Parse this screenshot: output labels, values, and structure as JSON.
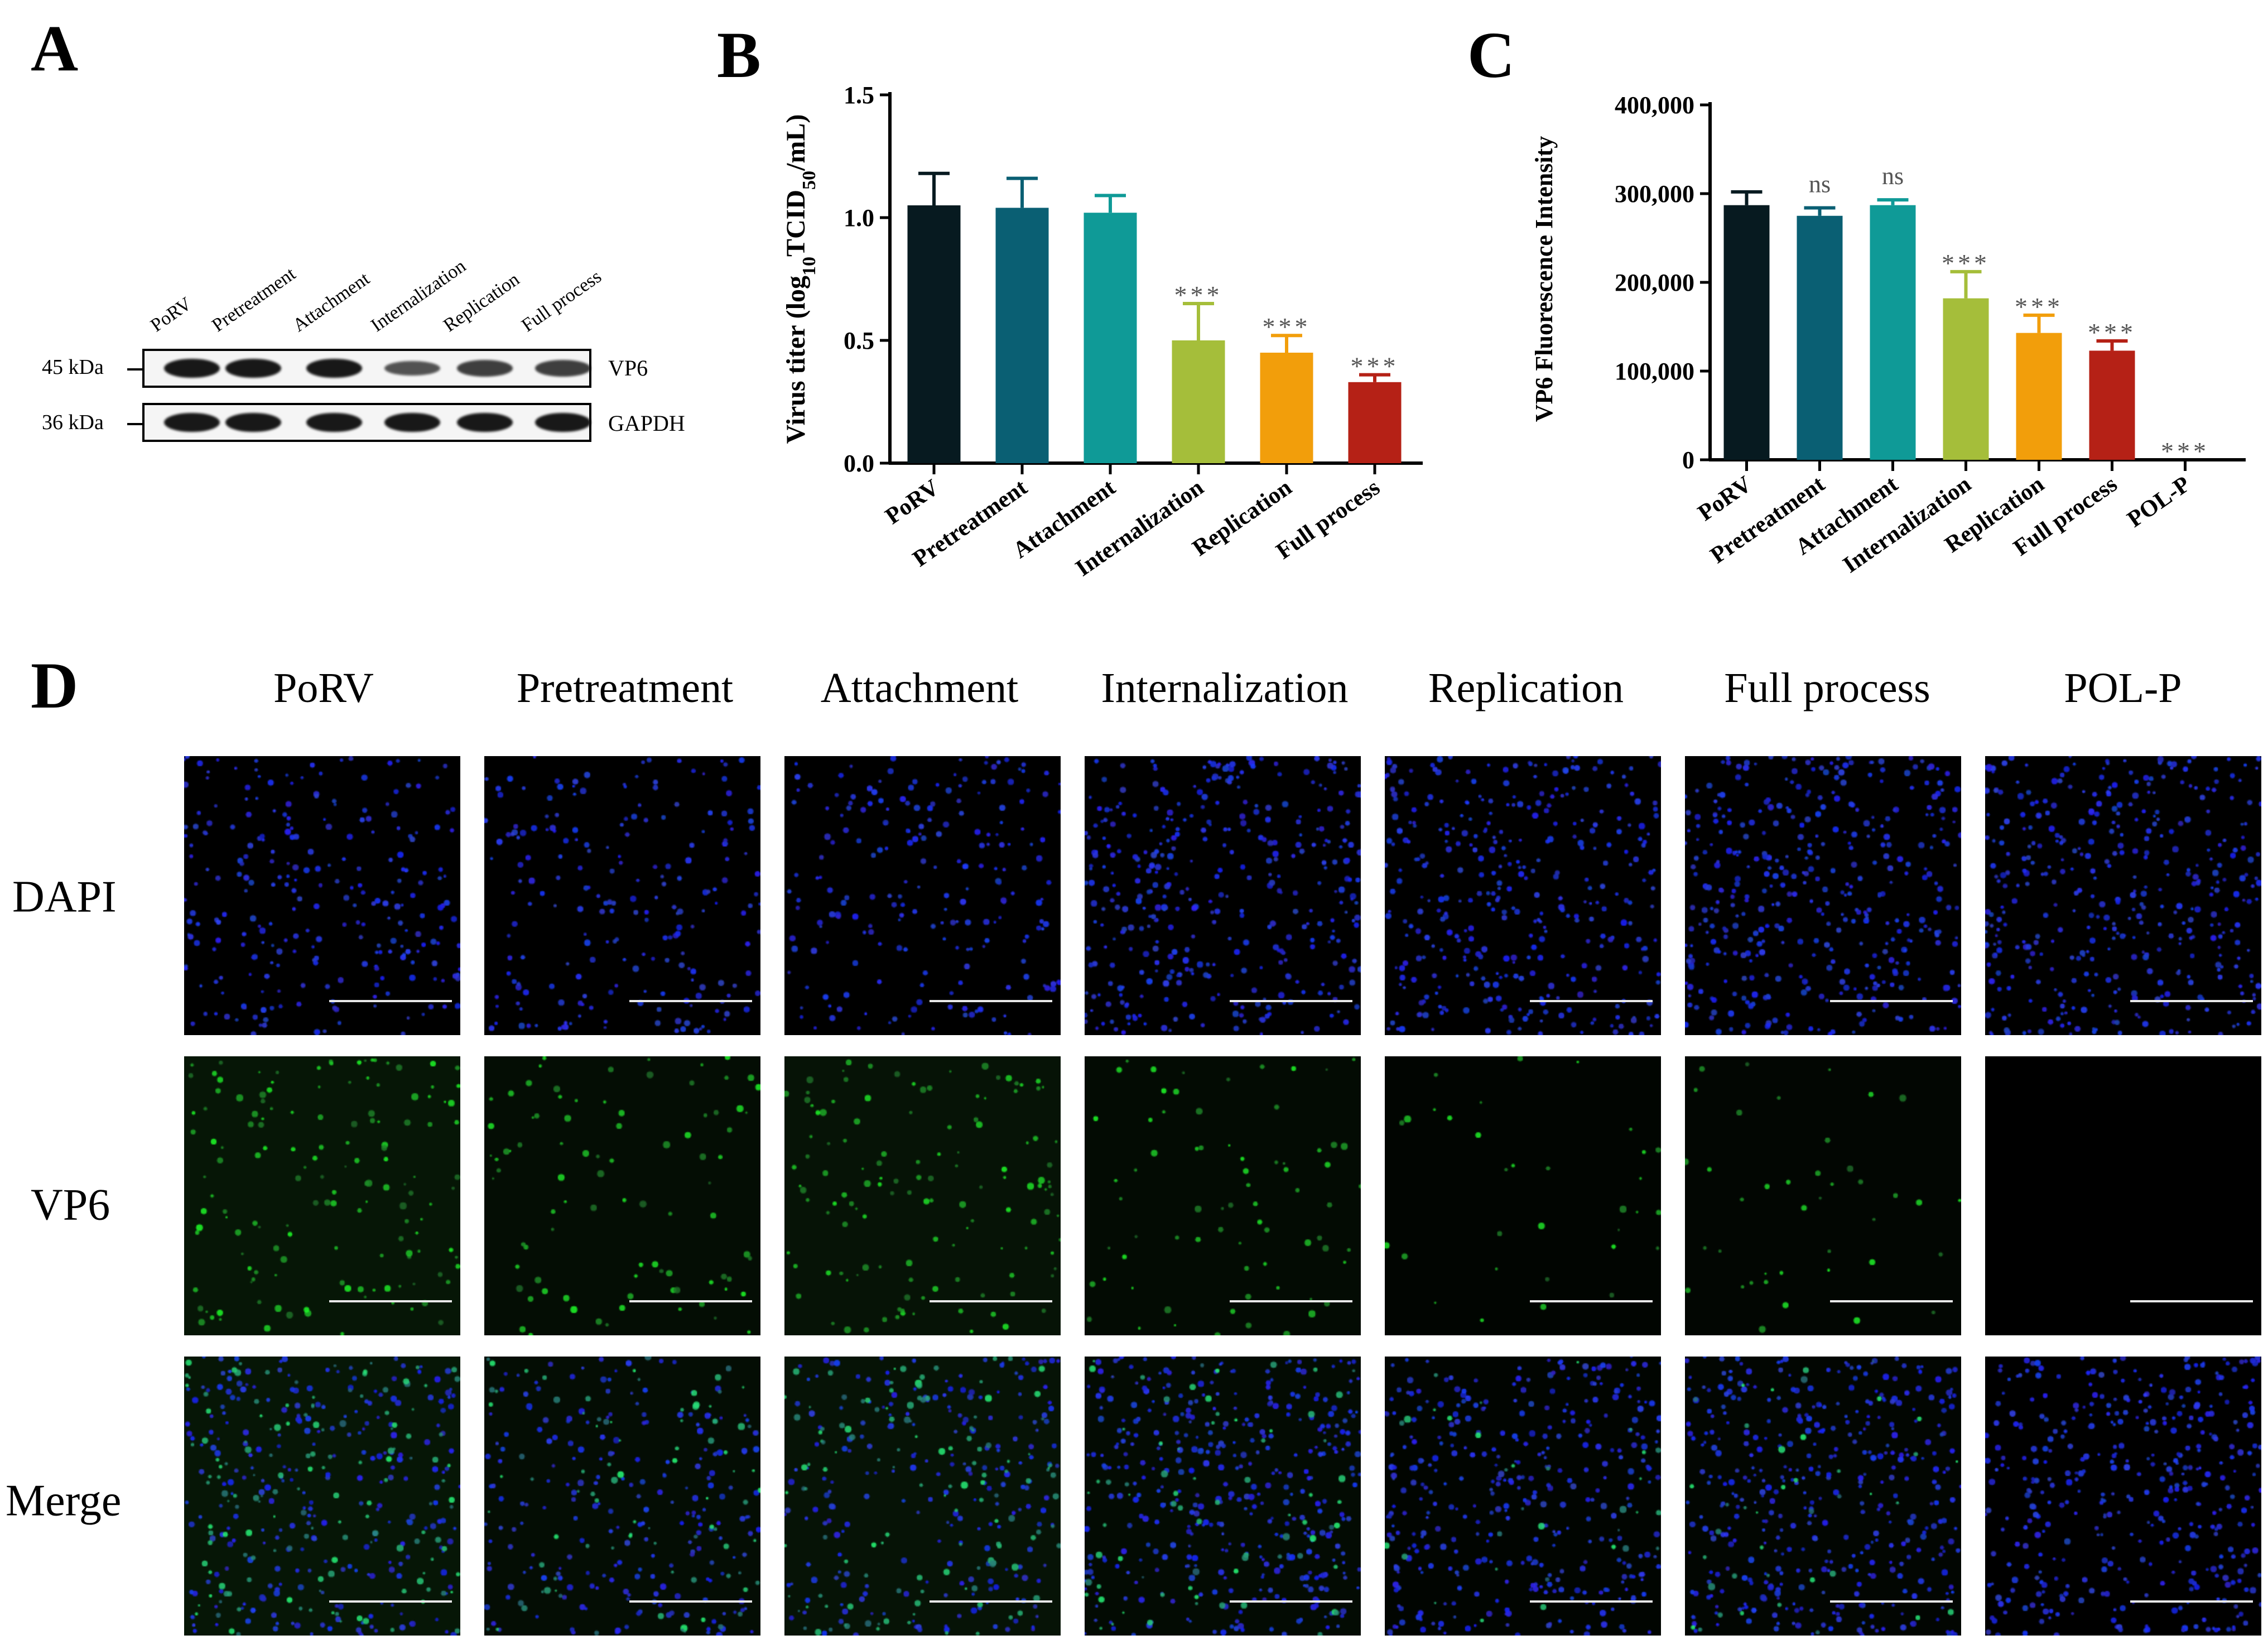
{
  "panels": {
    "a": "A",
    "b": "B",
    "c": "C",
    "d": "D"
  },
  "western_blot": {
    "lanes": [
      "PoRV",
      "Pretreatment",
      "Attachment",
      "Internalization",
      "Replication",
      "Full process"
    ],
    "rows": [
      {
        "kda": "45 kDa",
        "protein": "VP6",
        "band_strength": [
          0.95,
          0.95,
          0.95,
          0.55,
          0.7,
          0.7
        ]
      },
      {
        "kda": "36 kDa",
        "protein": "GAPDH",
        "band_strength": [
          0.95,
          0.95,
          0.95,
          0.95,
          0.95,
          0.95
        ]
      }
    ]
  },
  "chart_data": [
    {
      "type": "bar",
      "title": "",
      "ylabel_main": "Virus titer (log",
      "ylabel_sub": "10",
      "ylabel_mid": "TCID",
      "ylabel_sub2": "50",
      "ylabel_end": "/mL)",
      "categories": [
        "PoRV",
        "Pretreatment",
        "Attachment",
        "Internalization",
        "Replication",
        "Full process"
      ],
      "values": [
        1.05,
        1.04,
        1.02,
        0.5,
        0.45,
        0.33
      ],
      "errors": [
        0.13,
        0.12,
        0.07,
        0.15,
        0.07,
        0.03
      ],
      "colors": [
        "#071a20",
        "#0a5f73",
        "#0f9a97",
        "#a5be3a",
        "#f29e0b",
        "#b52116"
      ],
      "significance": [
        "",
        "",
        "",
        "***",
        "***",
        "***"
      ],
      "ylim": [
        0,
        1.5
      ],
      "yticks": [
        "0.0",
        "0.5",
        "1.0",
        "1.5"
      ]
    },
    {
      "type": "bar",
      "title": "",
      "ylabel": "VP6 Fluorescence Intensity",
      "categories": [
        "PoRV",
        "Pretreatment",
        "Attachment",
        "Internalization",
        "Replication",
        "Full process",
        "POL-P"
      ],
      "values": [
        287000,
        275000,
        287000,
        182000,
        143000,
        123000,
        0
      ],
      "errors": [
        15000,
        9000,
        6000,
        30000,
        20000,
        11000,
        0
      ],
      "colors": [
        "#071a20",
        "#0a5f73",
        "#0f9a97",
        "#a5be3a",
        "#f29e0b",
        "#b52116",
        "#444444"
      ],
      "significance": [
        "",
        "ns",
        "ns",
        "***",
        "***",
        "***",
        "***"
      ],
      "ylim": [
        0,
        400000
      ],
      "yticks": [
        "0",
        "100,000",
        "200,000",
        "300,000",
        "400,000"
      ]
    }
  ],
  "microscopy": {
    "columns": [
      "PoRV",
      "Pretreatment",
      "Attachment",
      "Internalization",
      "Replication",
      "Full process",
      "POL-P"
    ],
    "rows": [
      "DAPI",
      "VP6",
      "Merge"
    ],
    "vp6_green_level": [
      0.9,
      0.55,
      0.8,
      0.45,
      0.2,
      0.25,
      0.0
    ],
    "dapi_density": [
      0.6,
      0.5,
      0.5,
      0.9,
      0.85,
      0.95,
      0.95
    ]
  }
}
